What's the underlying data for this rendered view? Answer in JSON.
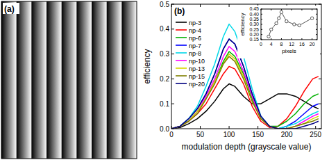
{
  "panel_a": {
    "label": "(a)",
    "periods": 9
  },
  "chart_data": [
    {
      "type": "line",
      "title": "(b)",
      "x_label": "modulation depth (grayscale value)",
      "y_label": "efficiency",
      "x": [
        0,
        15,
        30,
        45,
        60,
        75,
        90,
        100,
        110,
        125,
        140,
        155,
        170,
        185,
        200,
        215,
        230,
        245,
        255
      ],
      "xlim": [
        0,
        260
      ],
      "xticks": [
        0,
        50,
        100,
        150,
        200,
        250
      ],
      "ylim": [
        0,
        0.5
      ],
      "yticks": [
        {
          "value": 0,
          "label": "0.0"
        },
        {
          "value": 0.1,
          "label": "0.1"
        },
        {
          "value": 0.2,
          "label": "0.2"
        },
        {
          "value": 0.3,
          "label": "0.3"
        },
        {
          "value": 0.4,
          "label": "0.4"
        },
        {
          "value": 0.5,
          "label": "0.5"
        }
      ],
      "legend": "upper left",
      "series": [
        {
          "name": "np-3",
          "color": "#000000",
          "values": [
            0,
            0.005,
            0.02,
            0.04,
            0.07,
            0.11,
            0.16,
            0.18,
            0.17,
            0.13,
            0.1,
            0.1,
            0.12,
            0.14,
            0.14,
            0.13,
            0.11,
            0.09,
            0.08
          ]
        },
        {
          "name": "np-4",
          "color": "#ff0000",
          "values": [
            0,
            0.01,
            0.03,
            0.06,
            0.1,
            0.16,
            0.22,
            0.25,
            0.24,
            0.18,
            0.09,
            0.03,
            0.005,
            0.01,
            0.04,
            0.09,
            0.15,
            0.2,
            0.21
          ]
        },
        {
          "name": "np-6",
          "color": "#00b000",
          "values": [
            0,
            0.01,
            0.03,
            0.07,
            0.12,
            0.19,
            0.27,
            0.31,
            0.29,
            0.22,
            0.12,
            0.04,
            0.01,
            0.01,
            0.03,
            0.06,
            0.1,
            0.13,
            0.14
          ]
        },
        {
          "name": "np-7",
          "color": "#0000ff",
          "values": [
            0,
            0.01,
            0.04,
            0.08,
            0.14,
            0.22,
            0.32,
            0.36,
            0.34,
            0.25,
            0.14,
            0.05,
            0.01,
            0,
            0.01,
            0.03,
            0.06,
            0.09,
            0.1
          ]
        },
        {
          "name": "np-8",
          "color": "#00d8e8",
          "values": [
            0,
            0.01,
            0.04,
            0.09,
            0.17,
            0.26,
            0.37,
            0.42,
            0.39,
            0.29,
            0.16,
            0.05,
            0.01,
            0,
            0.01,
            0.02,
            0.04,
            0.06,
            0.07
          ]
        },
        {
          "name": "np-10",
          "color": "#ff00ff",
          "values": [
            0,
            0.01,
            0.03,
            0.07,
            0.13,
            0.2,
            0.29,
            0.33,
            0.31,
            0.23,
            0.13,
            0.04,
            0.01,
            0,
            0,
            0.01,
            0.03,
            0.05,
            0.06
          ]
        },
        {
          "name": "np-13",
          "color": "#d8d800",
          "values": [
            0,
            0.01,
            0.03,
            0.07,
            0.12,
            0.19,
            0.26,
            0.3,
            0.28,
            0.21,
            0.11,
            0.04,
            0.01,
            0,
            0,
            0.01,
            0.02,
            0.04,
            0.05
          ]
        },
        {
          "name": "np-15",
          "color": "#808000",
          "values": [
            0,
            0.01,
            0.03,
            0.06,
            0.12,
            0.18,
            0.26,
            0.29,
            0.27,
            0.2,
            0.11,
            0.04,
            0.01,
            0,
            0,
            0.01,
            0.02,
            0.03,
            0.04
          ]
        },
        {
          "name": "np-20",
          "color": "#000080",
          "values": [
            0,
            0.01,
            0.04,
            0.08,
            0.14,
            0.22,
            0.32,
            0.36,
            0.34,
            0.25,
            0.14,
            0.05,
            0.01,
            0,
            0,
            0,
            0.01,
            0.02,
            0.03
          ]
        }
      ]
    },
    {
      "type": "line",
      "x_label": "pixels",
      "y_label": "efficiency",
      "x": [
        3,
        4,
        6,
        7,
        8,
        10,
        13,
        15,
        20
      ],
      "xlim": [
        0,
        22
      ],
      "xticks": [
        0,
        4,
        8,
        12,
        16,
        20
      ],
      "ylim": [
        0.15,
        0.45
      ],
      "yticks": [
        0.15,
        {
          "value": 0.2,
          "label": "0.20"
        },
        0.25,
        {
          "value": 0.3,
          "label": "0.30"
        },
        0.35,
        {
          "value": 0.4,
          "label": "0.40"
        },
        0.45
      ],
      "series": [
        {
          "color": "#555555",
          "marker": "circle",
          "values": [
            0.18,
            0.25,
            0.31,
            0.36,
            0.42,
            0.33,
            0.3,
            0.29,
            0.36
          ]
        }
      ]
    }
  ]
}
